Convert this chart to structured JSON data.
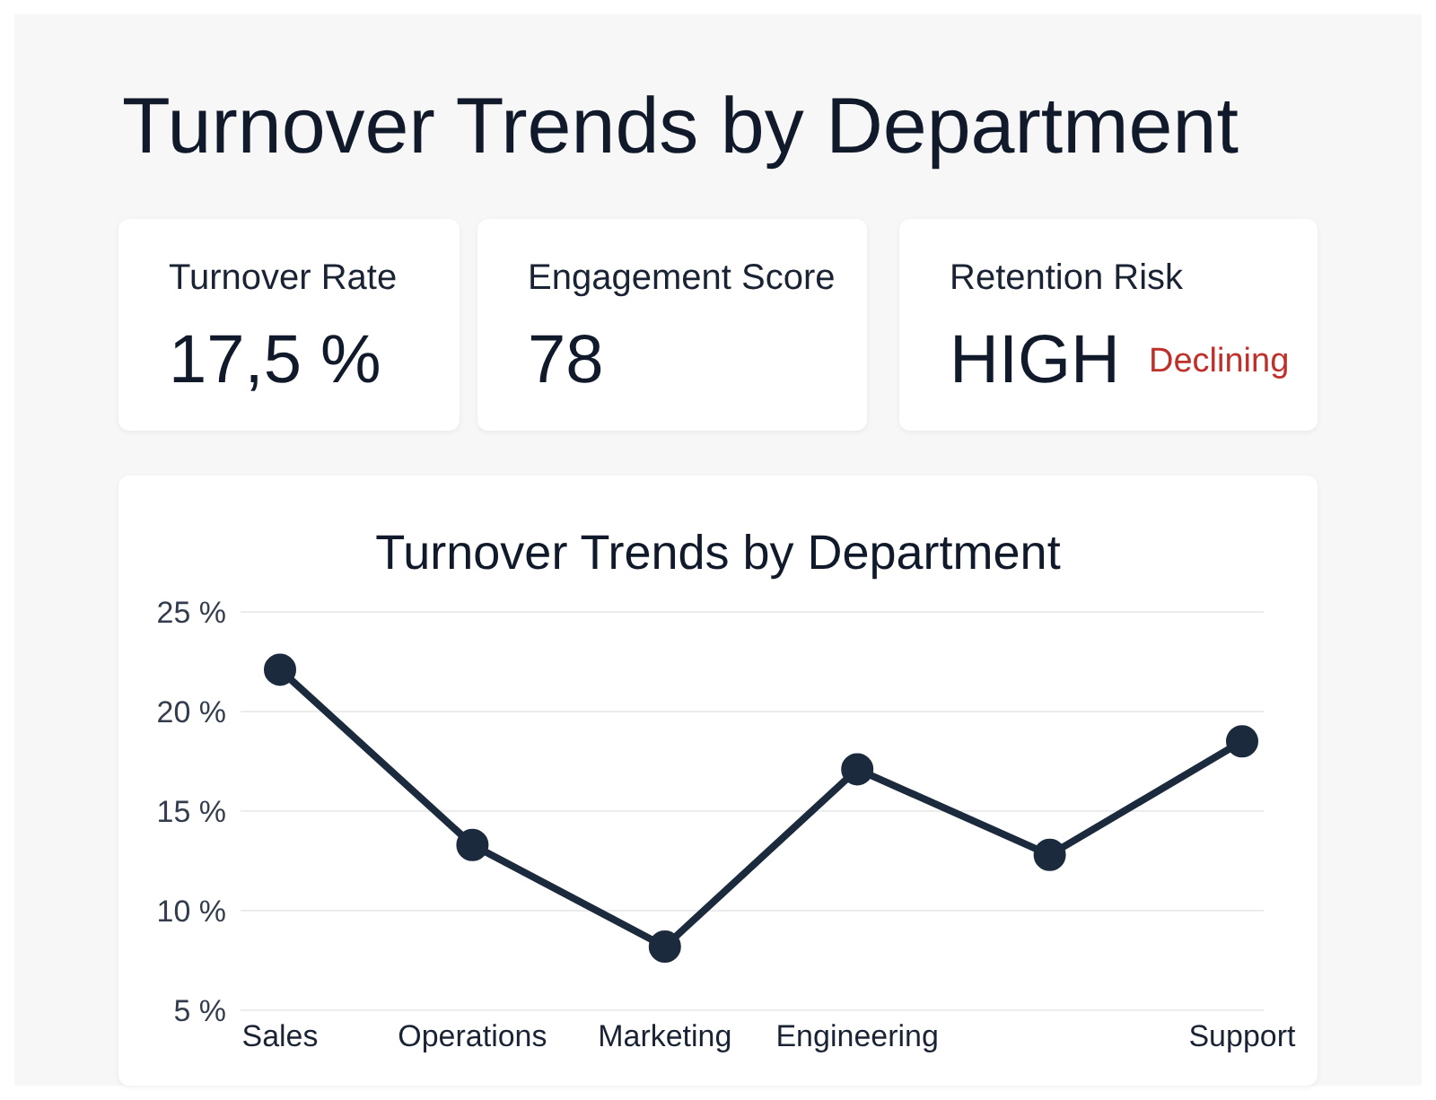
{
  "chart_data": [
    {
      "type": "other",
      "title": "Turnover Trends by Department"
    },
    {
      "type": "other",
      "title": "Turnover Rate",
      "annotations": [
        "17,5 %"
      ]
    },
    {
      "type": "other",
      "title": "Engagement Score",
      "annotations": [
        "78"
      ]
    },
    {
      "type": "other",
      "title": "Retention Risk",
      "annotations": [
        "HIGH",
        "Declining"
      ]
    },
    {
      "type": "line",
      "title": "Turnover Trends by Department",
      "categories": [
        "Sales",
        "Operations",
        "Marketing",
        "Engineering",
        null,
        "Support"
      ],
      "series": [
        {
          "color": "#1b2a3d",
          "values": [
            22.1,
            13.3,
            8.2,
            17.1,
            12.8,
            18.5
          ]
        }
      ],
      "ylim": [
        5,
        25
      ],
      "yticks": [
        {
          "value": 5,
          "label": "5 %"
        },
        {
          "value": 10,
          "label": "10 %"
        },
        {
          "value": 15,
          "label": "15 %"
        },
        {
          "value": 20,
          "label": "20 %"
        },
        {
          "value": 25,
          "label": "25 %"
        }
      ],
      "grid": "y",
      "marker": "circle",
      "line_style": "solid",
      "legend": false
    }
  ]
}
